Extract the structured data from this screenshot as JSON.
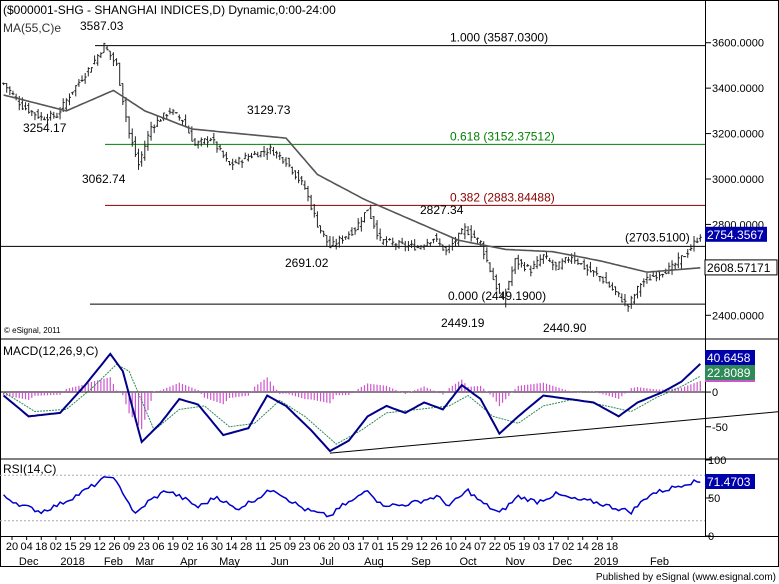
{
  "chart_data": [
    {
      "type": "candlestick",
      "title": "($000001-SHG - SHANGHAI INDICES,D) Dynamic,0:00-24:00",
      "overlay_label": "MA(55,C)e",
      "watermark": "© eSignal, 2011",
      "ylim": [
        2300,
        3700
      ],
      "yticks": [
        "3600.0000",
        "3400.0000",
        "3200.0000",
        "3000.0000",
        "2800.0000",
        "2400.0000"
      ],
      "ytick_values": [
        3600,
        3400,
        3200,
        3000,
        2800,
        2400
      ],
      "last_price": "2754.3567",
      "ma_value": "2608.57171",
      "fib_levels": [
        {
          "label": "1.000 (3587.0300)",
          "value": 3587.03,
          "color": "#000000"
        },
        {
          "label": "0.618 (3152.37512)",
          "value": 3152.38,
          "color": "#008000"
        },
        {
          "label": "0.382 (2883.84488)",
          "value": 2883.84,
          "color": "#8b0000"
        },
        {
          "label": "0.000 (2449.1900)",
          "value": 2449.19,
          "color": "#000000"
        }
      ],
      "hline": {
        "label": "(2703.5100)",
        "value": 2703.51
      },
      "annotations": [
        {
          "text": "3587.03",
          "value": 3587.03
        },
        {
          "text": "3254.17",
          "value": 3254.17
        },
        {
          "text": "3062.74",
          "value": 3062.74
        },
        {
          "text": "3129.73",
          "value": 3129.73
        },
        {
          "text": "2691.02",
          "value": 2691.02
        },
        {
          "text": "2827.34",
          "value": 2827.34
        },
        {
          "text": "2449.19",
          "value": 2449.19
        },
        {
          "text": "2440.90",
          "value": 2440.9
        }
      ],
      "price_anchors": [
        {
          "idx": 0,
          "v": 3420
        },
        {
          "idx": 6,
          "v": 3320
        },
        {
          "idx": 12,
          "v": 3270
        },
        {
          "idx": 17,
          "v": 3280
        },
        {
          "idx": 22,
          "v": 3390
        },
        {
          "idx": 28,
          "v": 3500
        },
        {
          "idx": 32,
          "v": 3587
        },
        {
          "idx": 36,
          "v": 3500
        },
        {
          "idx": 40,
          "v": 3200
        },
        {
          "idx": 43,
          "v": 3063
        },
        {
          "idx": 47,
          "v": 3230
        },
        {
          "idx": 53,
          "v": 3300
        },
        {
          "idx": 57,
          "v": 3260
        },
        {
          "idx": 61,
          "v": 3150
        },
        {
          "idx": 66,
          "v": 3180
        },
        {
          "idx": 72,
          "v": 3060
        },
        {
          "idx": 78,
          "v": 3100
        },
        {
          "idx": 85,
          "v": 3130
        },
        {
          "idx": 90,
          "v": 3080
        },
        {
          "idx": 96,
          "v": 2960
        },
        {
          "idx": 100,
          "v": 2800
        },
        {
          "idx": 104,
          "v": 2700
        },
        {
          "idx": 108,
          "v": 2740
        },
        {
          "idx": 112,
          "v": 2780
        },
        {
          "idx": 116,
          "v": 2870
        },
        {
          "idx": 120,
          "v": 2730
        },
        {
          "idx": 126,
          "v": 2710
        },
        {
          "idx": 132,
          "v": 2700
        },
        {
          "idx": 137,
          "v": 2740
        },
        {
          "idx": 141,
          "v": 2680
        },
        {
          "idx": 147,
          "v": 2780
        },
        {
          "idx": 152,
          "v": 2720
        },
        {
          "idx": 156,
          "v": 2560
        },
        {
          "idx": 159,
          "v": 2460
        },
        {
          "idx": 163,
          "v": 2640
        },
        {
          "idx": 168,
          "v": 2600
        },
        {
          "idx": 172,
          "v": 2660
        },
        {
          "idx": 176,
          "v": 2610
        },
        {
          "idx": 181,
          "v": 2660
        },
        {
          "idx": 186,
          "v": 2600
        },
        {
          "idx": 190,
          "v": 2570
        },
        {
          "idx": 195,
          "v": 2500
        },
        {
          "idx": 199,
          "v": 2440
        },
        {
          "idx": 203,
          "v": 2540
        },
        {
          "idx": 208,
          "v": 2580
        },
        {
          "idx": 213,
          "v": 2610
        },
        {
          "idx": 218,
          "v": 2680
        },
        {
          "idx": 222,
          "v": 2754
        }
      ],
      "ma_anchors": [
        {
          "idx": 0,
          "v": 3370
        },
        {
          "idx": 20,
          "v": 3300
        },
        {
          "idx": 35,
          "v": 3390
        },
        {
          "idx": 45,
          "v": 3300
        },
        {
          "idx": 60,
          "v": 3220
        },
        {
          "idx": 75,
          "v": 3200
        },
        {
          "idx": 90,
          "v": 3180
        },
        {
          "idx": 100,
          "v": 3020
        },
        {
          "idx": 115,
          "v": 2910
        },
        {
          "idx": 130,
          "v": 2820
        },
        {
          "idx": 145,
          "v": 2730
        },
        {
          "idx": 160,
          "v": 2690
        },
        {
          "idx": 175,
          "v": 2680
        },
        {
          "idx": 190,
          "v": 2640
        },
        {
          "idx": 205,
          "v": 2590
        },
        {
          "idx": 222,
          "v": 2609
        }
      ]
    },
    {
      "type": "line",
      "title": "MACD(12,26,9,C)",
      "ylim": [
        -95,
        75
      ],
      "yticks": [
        "0",
        "-50"
      ],
      "ytick_values": [
        0,
        -50
      ],
      "values_shown": [
        "40.6458",
        "22.8089"
      ],
      "macd_anchors": [
        {
          "idx": 0,
          "v": -5
        },
        {
          "idx": 8,
          "v": -35
        },
        {
          "idx": 18,
          "v": -30
        },
        {
          "idx": 26,
          "v": 10
        },
        {
          "idx": 34,
          "v": 55
        },
        {
          "idx": 38,
          "v": 30
        },
        {
          "idx": 44,
          "v": -72
        },
        {
          "idx": 50,
          "v": -45
        },
        {
          "idx": 56,
          "v": -10
        },
        {
          "idx": 62,
          "v": -18
        },
        {
          "idx": 70,
          "v": -62
        },
        {
          "idx": 78,
          "v": -52
        },
        {
          "idx": 84,
          "v": -5
        },
        {
          "idx": 90,
          "v": -20
        },
        {
          "idx": 98,
          "v": -55
        },
        {
          "idx": 104,
          "v": -85
        },
        {
          "idx": 110,
          "v": -70
        },
        {
          "idx": 116,
          "v": -35
        },
        {
          "idx": 122,
          "v": -20
        },
        {
          "idx": 128,
          "v": -30
        },
        {
          "idx": 134,
          "v": -15
        },
        {
          "idx": 140,
          "v": -25
        },
        {
          "idx": 146,
          "v": 10
        },
        {
          "idx": 152,
          "v": -10
        },
        {
          "idx": 158,
          "v": -60
        },
        {
          "idx": 164,
          "v": -35
        },
        {
          "idx": 172,
          "v": -5
        },
        {
          "idx": 180,
          "v": -10
        },
        {
          "idx": 188,
          "v": -15
        },
        {
          "idx": 196,
          "v": -35
        },
        {
          "idx": 202,
          "v": -15
        },
        {
          "idx": 210,
          "v": 0
        },
        {
          "idx": 216,
          "v": 15
        },
        {
          "idx": 222,
          "v": 40.6
        }
      ],
      "signal_anchors": [
        {
          "idx": 0,
          "v": 0
        },
        {
          "idx": 10,
          "v": -28
        },
        {
          "idx": 20,
          "v": -25
        },
        {
          "idx": 28,
          "v": 5
        },
        {
          "idx": 36,
          "v": 40
        },
        {
          "idx": 40,
          "v": 30
        },
        {
          "idx": 48,
          "v": -55
        },
        {
          "idx": 56,
          "v": -25
        },
        {
          "idx": 64,
          "v": -20
        },
        {
          "idx": 72,
          "v": -50
        },
        {
          "idx": 80,
          "v": -45
        },
        {
          "idx": 88,
          "v": -12
        },
        {
          "idx": 96,
          "v": -35
        },
        {
          "idx": 106,
          "v": -75
        },
        {
          "idx": 114,
          "v": -55
        },
        {
          "idx": 122,
          "v": -30
        },
        {
          "idx": 132,
          "v": -25
        },
        {
          "idx": 142,
          "v": -20
        },
        {
          "idx": 148,
          "v": -5
        },
        {
          "idx": 156,
          "v": -35
        },
        {
          "idx": 164,
          "v": -45
        },
        {
          "idx": 172,
          "v": -20
        },
        {
          "idx": 182,
          "v": -10
        },
        {
          "idx": 192,
          "v": -20
        },
        {
          "idx": 200,
          "v": -28
        },
        {
          "idx": 208,
          "v": -8
        },
        {
          "idx": 216,
          "v": 8
        },
        {
          "idx": 222,
          "v": 22.8
        }
      ],
      "trendline": {
        "from": {
          "idx": 104,
          "v": -88
        },
        "to": {
          "idx": 262,
          "v": -22
        }
      }
    },
    {
      "type": "line",
      "title": "RSI(14,C)",
      "ylim": [
        0,
        100
      ],
      "yticks": [
        "100",
        "50",
        "0"
      ],
      "ytick_values": [
        100,
        50,
        0
      ],
      "value_shown": "71.4703",
      "rsi_anchors": [
        {
          "idx": 0,
          "v": 52
        },
        {
          "idx": 6,
          "v": 40
        },
        {
          "idx": 12,
          "v": 32
        },
        {
          "idx": 18,
          "v": 42
        },
        {
          "idx": 24,
          "v": 55
        },
        {
          "idx": 30,
          "v": 70
        },
        {
          "idx": 34,
          "v": 80
        },
        {
          "idx": 38,
          "v": 58
        },
        {
          "idx": 42,
          "v": 28
        },
        {
          "idx": 46,
          "v": 45
        },
        {
          "idx": 52,
          "v": 60
        },
        {
          "idx": 58,
          "v": 48
        },
        {
          "idx": 62,
          "v": 38
        },
        {
          "idx": 68,
          "v": 52
        },
        {
          "idx": 74,
          "v": 35
        },
        {
          "idx": 80,
          "v": 48
        },
        {
          "idx": 86,
          "v": 62
        },
        {
          "idx": 92,
          "v": 45
        },
        {
          "idx": 96,
          "v": 35
        },
        {
          "idx": 100,
          "v": 30
        },
        {
          "idx": 104,
          "v": 26
        },
        {
          "idx": 108,
          "v": 40
        },
        {
          "idx": 112,
          "v": 48
        },
        {
          "idx": 116,
          "v": 62
        },
        {
          "idx": 120,
          "v": 42
        },
        {
          "idx": 126,
          "v": 40
        },
        {
          "idx": 132,
          "v": 45
        },
        {
          "idx": 138,
          "v": 52
        },
        {
          "idx": 142,
          "v": 40
        },
        {
          "idx": 148,
          "v": 60
        },
        {
          "idx": 152,
          "v": 45
        },
        {
          "idx": 158,
          "v": 30
        },
        {
          "idx": 164,
          "v": 52
        },
        {
          "idx": 170,
          "v": 45
        },
        {
          "idx": 176,
          "v": 55
        },
        {
          "idx": 182,
          "v": 48
        },
        {
          "idx": 188,
          "v": 45
        },
        {
          "idx": 194,
          "v": 38
        },
        {
          "idx": 200,
          "v": 32
        },
        {
          "idx": 206,
          "v": 55
        },
        {
          "idx": 212,
          "v": 62
        },
        {
          "idx": 218,
          "v": 70
        },
        {
          "idx": 222,
          "v": 71.5
        }
      ]
    }
  ],
  "x_axis": {
    "day_ticks": [
      "20",
      "04",
      "18",
      "02",
      "15",
      "29",
      "12",
      "26",
      "09",
      "23",
      "06",
      "19",
      "02",
      "16",
      "30",
      "14",
      "28",
      "11",
      "25",
      "09",
      "23",
      "06",
      "20",
      "03",
      "17",
      "01",
      "15",
      "29",
      "12",
      "26",
      "10",
      "24",
      "07",
      "22",
      "05",
      "19",
      "03",
      "17",
      "02",
      "14",
      "28",
      "18"
    ],
    "month_labels": [
      {
        "text": "Dec",
        "idx": 8
      },
      {
        "text": "2018",
        "idx": 22
      },
      {
        "text": "Feb",
        "idx": 35
      },
      {
        "text": "Mar",
        "idx": 45
      },
      {
        "text": "Apr",
        "idx": 59
      },
      {
        "text": "May",
        "idx": 72
      },
      {
        "text": "Jun",
        "idx": 88
      },
      {
        "text": "Jul",
        "idx": 103
      },
      {
        "text": "Aug",
        "idx": 118
      },
      {
        "text": "Sep",
        "idx": 133
      },
      {
        "text": "Oct",
        "idx": 148
      },
      {
        "text": "Nov",
        "idx": 163
      },
      {
        "text": "Dec",
        "idx": 178
      },
      {
        "text": "2019",
        "idx": 192
      },
      {
        "text": "Feb",
        "idx": 209
      }
    ]
  },
  "footer": "Published by eSignal (www.esignal.com)",
  "colors": {
    "price": "#222222",
    "ma": "#555555",
    "macd": "#00008b",
    "signal": "#2e8b57",
    "hist": "#cc55cc",
    "rsi": "#0000cc",
    "label_bg": "#0000aa"
  }
}
